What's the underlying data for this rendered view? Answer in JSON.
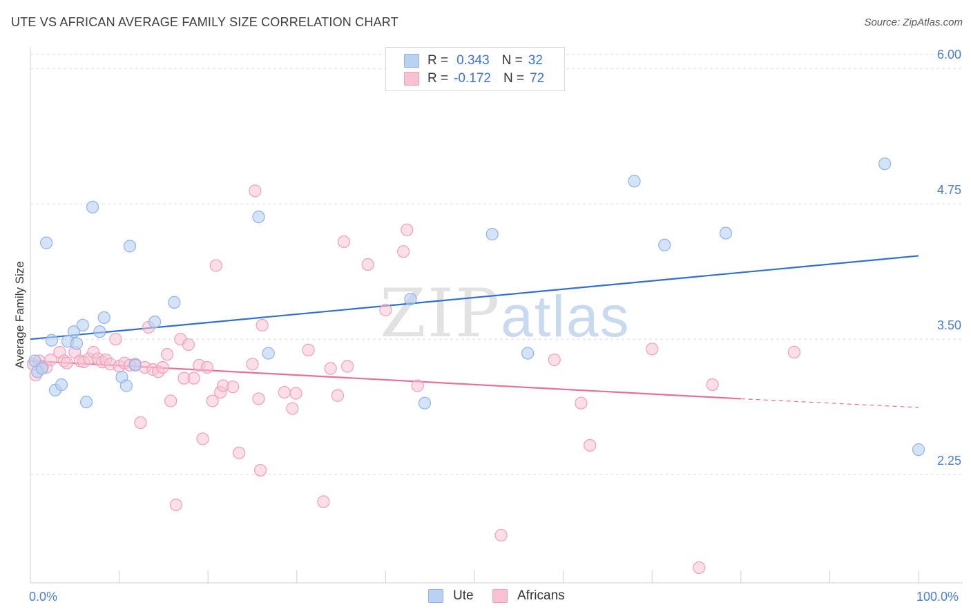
{
  "title": "UTE VS AFRICAN AVERAGE FAMILY SIZE CORRELATION CHART",
  "source": "Source: ZipAtlas.com",
  "watermark": {
    "zip": "ZIP",
    "atlas": "atlas"
  },
  "legend": {
    "rows": [
      {
        "r_label": "R =",
        "r_value": "0.343",
        "n_label": "N =",
        "n_value": "32"
      },
      {
        "r_label": "R =",
        "r_value": "-0.172",
        "n_label": "N =",
        "n_value": "72"
      }
    ]
  },
  "bottom_legend": {
    "ute": "Ute",
    "africans": "Africans"
  },
  "colors": {
    "ute_fill": "#b9d1f3",
    "ute_stroke": "#8fb3e6",
    "ute_line": "#2f6fce",
    "afr_fill": "#f7c3d3",
    "afr_stroke": "#ef9fb8",
    "afr_line": "#e76f98",
    "grid": "#dcdcdc",
    "tick_text": "#4a7fd4"
  },
  "chart_data": {
    "type": "scatter",
    "title": "UTE VS AFRICAN AVERAGE FAMILY SIZE CORRELATION CHART",
    "xlabel": "",
    "ylabel": "Average Family Size",
    "xlim": [
      0,
      100
    ],
    "ylim": [
      1.25,
      6.25
    ],
    "x_tick_labels": [
      "0.0%",
      "100.0%"
    ],
    "y_ticks": [
      2.25,
      3.5,
      4.75,
      6.0
    ],
    "y_tick_labels": [
      "2.25",
      "3.50",
      "4.75",
      "6.00"
    ],
    "series": [
      {
        "name": "Ute",
        "R": 0.343,
        "N": 32,
        "trend": {
          "x": [
            0,
            100
          ],
          "y": [
            3.5,
            4.27
          ],
          "dashed_from": null
        },
        "points": [
          [
            0.5,
            3.3
          ],
          [
            0.8,
            3.2
          ],
          [
            1.3,
            3.23
          ],
          [
            1.8,
            4.39
          ],
          [
            2.4,
            3.49
          ],
          [
            2.8,
            3.03
          ],
          [
            3.5,
            3.08
          ],
          [
            4.2,
            3.48
          ],
          [
            4.9,
            3.57
          ],
          [
            5.2,
            3.46
          ],
          [
            5.9,
            3.63
          ],
          [
            6.3,
            2.92
          ],
          [
            7.0,
            4.72
          ],
          [
            7.8,
            3.57
          ],
          [
            8.3,
            3.7
          ],
          [
            10.3,
            3.15
          ],
          [
            10.8,
            3.07
          ],
          [
            11.2,
            4.36
          ],
          [
            11.8,
            3.26
          ],
          [
            14.0,
            3.66
          ],
          [
            16.2,
            3.84
          ],
          [
            25.7,
            4.63
          ],
          [
            26.8,
            3.37
          ],
          [
            42.8,
            3.87
          ],
          [
            44.4,
            2.91
          ],
          [
            52.0,
            4.47
          ],
          [
            56.0,
            3.37
          ],
          [
            68.0,
            4.96
          ],
          [
            71.4,
            4.37
          ],
          [
            78.3,
            4.48
          ],
          [
            96.2,
            5.12
          ],
          [
            100.0,
            2.48
          ]
        ]
      },
      {
        "name": "Africans",
        "R": -0.172,
        "N": 72,
        "trend": {
          "x": [
            0,
            80,
            100
          ],
          "y": [
            3.3,
            2.95,
            2.87
          ],
          "dashed_from": 80
        },
        "points": [
          [
            0.3,
            3.27
          ],
          [
            0.6,
            3.17
          ],
          [
            1.0,
            3.3
          ],
          [
            1.4,
            3.25
          ],
          [
            1.8,
            3.24
          ],
          [
            2.3,
            3.31
          ],
          [
            3.3,
            3.38
          ],
          [
            3.8,
            3.3
          ],
          [
            4.1,
            3.28
          ],
          [
            5.0,
            3.38
          ],
          [
            5.6,
            3.3
          ],
          [
            6.0,
            3.29
          ],
          [
            6.6,
            3.32
          ],
          [
            7.1,
            3.38
          ],
          [
            7.6,
            3.32
          ],
          [
            8.1,
            3.29
          ],
          [
            8.5,
            3.31
          ],
          [
            9.0,
            3.27
          ],
          [
            9.6,
            3.5
          ],
          [
            10.0,
            3.25
          ],
          [
            10.6,
            3.28
          ],
          [
            11.2,
            3.26
          ],
          [
            11.8,
            3.27
          ],
          [
            12.4,
            2.73
          ],
          [
            12.9,
            3.24
          ],
          [
            13.3,
            3.61
          ],
          [
            13.8,
            3.22
          ],
          [
            14.4,
            3.2
          ],
          [
            14.9,
            3.24
          ],
          [
            15.4,
            3.36
          ],
          [
            15.8,
            2.93
          ],
          [
            16.4,
            1.97
          ],
          [
            16.9,
            3.5
          ],
          [
            17.3,
            3.14
          ],
          [
            17.8,
            3.45
          ],
          [
            18.4,
            3.14
          ],
          [
            19.0,
            3.26
          ],
          [
            19.4,
            2.58
          ],
          [
            19.9,
            3.24
          ],
          [
            20.5,
            2.93
          ],
          [
            20.9,
            4.18
          ],
          [
            21.4,
            3.01
          ],
          [
            21.7,
            3.07
          ],
          [
            22.8,
            3.06
          ],
          [
            23.5,
            2.45
          ],
          [
            25.0,
            3.27
          ],
          [
            25.3,
            4.87
          ],
          [
            25.7,
            2.95
          ],
          [
            25.9,
            2.29
          ],
          [
            26.1,
            3.63
          ],
          [
            28.6,
            3.01
          ],
          [
            29.5,
            2.86
          ],
          [
            29.9,
            3.0
          ],
          [
            31.3,
            3.4
          ],
          [
            33.0,
            2.0
          ],
          [
            33.8,
            3.23
          ],
          [
            34.6,
            2.98
          ],
          [
            35.3,
            4.4
          ],
          [
            35.7,
            3.25
          ],
          [
            38.0,
            4.19
          ],
          [
            40.0,
            3.77
          ],
          [
            42.0,
            4.31
          ],
          [
            42.4,
            4.51
          ],
          [
            43.6,
            3.07
          ],
          [
            53.0,
            1.69
          ],
          [
            59.0,
            3.31
          ],
          [
            62.0,
            2.91
          ],
          [
            63.0,
            2.52
          ],
          [
            70.0,
            3.41
          ],
          [
            75.3,
            1.39
          ],
          [
            76.8,
            3.08
          ],
          [
            86.0,
            3.38
          ]
        ]
      }
    ]
  }
}
